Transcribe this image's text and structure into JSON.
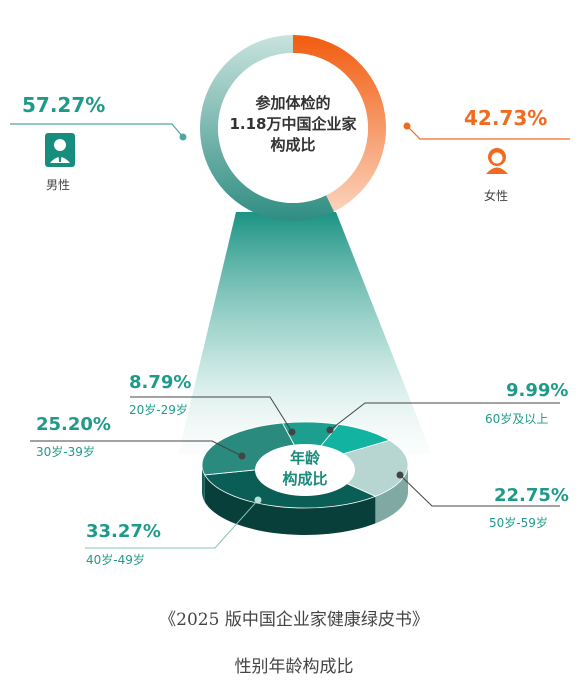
{
  "colors": {
    "male": "#4fa89d",
    "female": "#f26a1f",
    "teal_dark": "#0b5e55",
    "teal_mid": "#2a8a7e",
    "teal_light": "#b7d6d1",
    "teal_bright": "#12b3a0"
  },
  "icons": {
    "male": "male-user-icon",
    "female": "female-user-icon"
  },
  "chart_data": [
    {
      "type": "pie",
      "title": "参加体检的1.18万中国企业家构成比",
      "title_lines": [
        "参加体检的",
        "1.18万中国企业家",
        "构成比"
      ],
      "series": [
        {
          "name": "男性",
          "value": 57.27,
          "label": "57.27%",
          "color": "#4fa89d"
        },
        {
          "name": "女性",
          "value": 42.73,
          "label": "42.73%",
          "color": "#f26a1f"
        }
      ]
    },
    {
      "type": "pie",
      "title": "年龄构成比",
      "title_lines": [
        "年龄",
        "构成比"
      ],
      "series": [
        {
          "name": "60岁及以上",
          "value": 9.99,
          "label": "9.99%",
          "color": "#12b3a0"
        },
        {
          "name": "50岁-59岁",
          "value": 22.75,
          "label": "22.75%",
          "color": "#b7d6d1"
        },
        {
          "name": "40岁-49岁",
          "value": 33.27,
          "label": "33.27%",
          "color": "#0b5e55"
        },
        {
          "name": "30岁-39岁",
          "value": 25.2,
          "label": "25.20%",
          "color": "#2a8a7e"
        },
        {
          "name": "20岁-29岁",
          "value": 8.79,
          "label": "8.79%",
          "color": "#1c9f8f"
        }
      ]
    }
  ],
  "caption": {
    "source": "《2025 版中国企业家健康绿皮书》",
    "title": "性别年龄构成比"
  }
}
